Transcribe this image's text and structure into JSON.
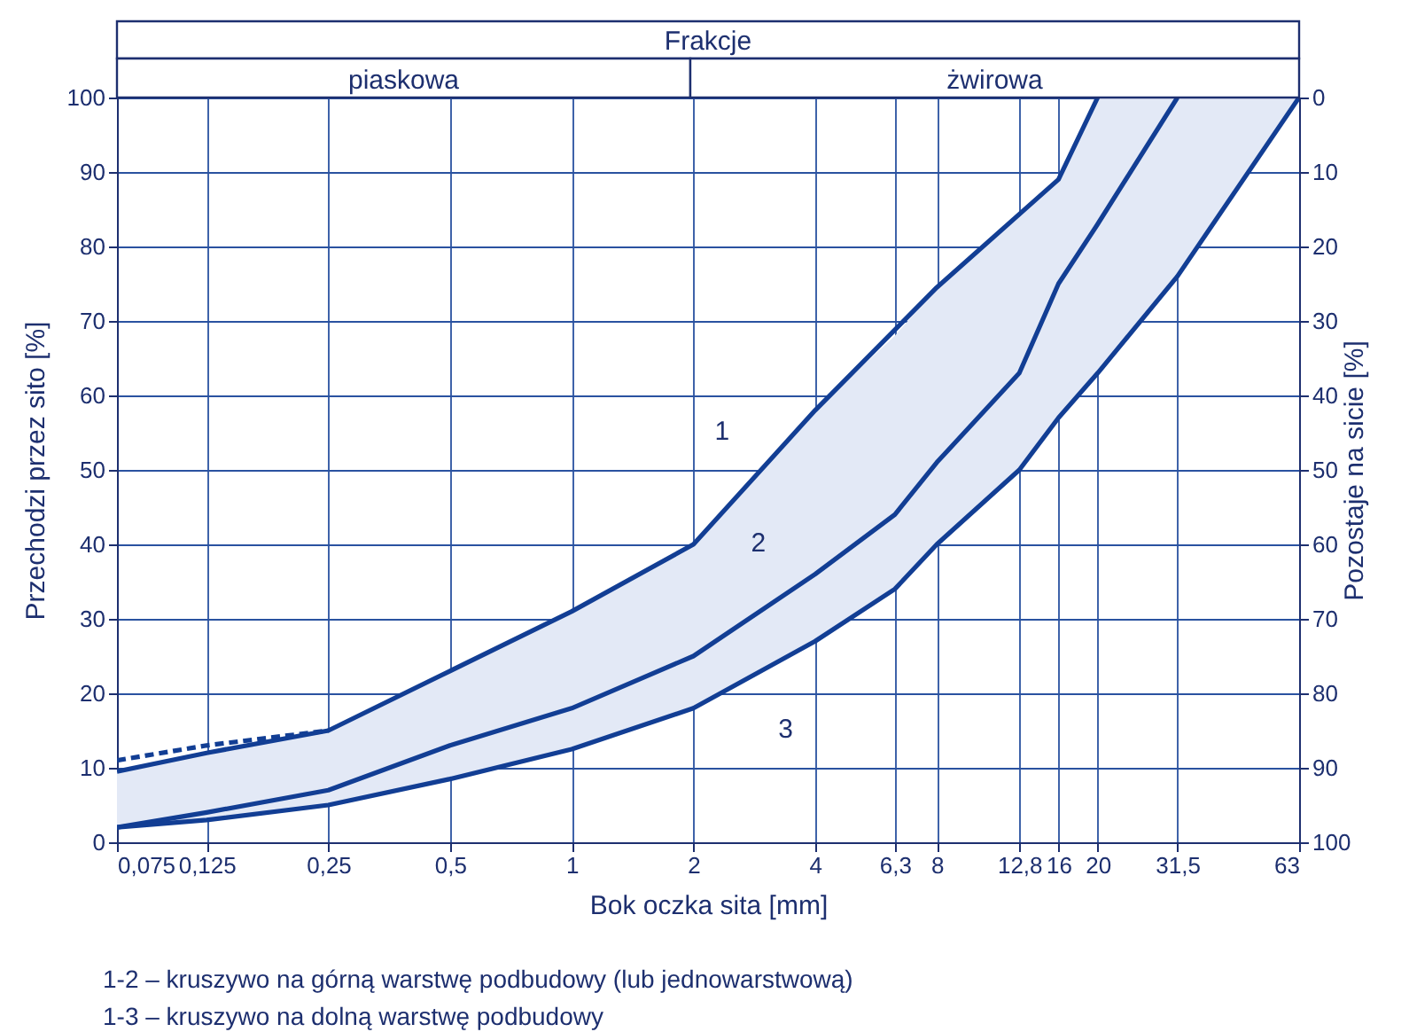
{
  "chart_data": {
    "type": "line",
    "title": "Frakcje",
    "xlabel": "Bok oczka sita [mm]",
    "ylabel": "Przechodzi przez sito [%]",
    "y2label": "Pozostaje na sicie [%]",
    "log": "x",
    "xlim": [
      0.075,
      63
    ],
    "xticks": [
      {
        "value": 0.075,
        "label": "0,075"
      },
      {
        "value": 0.125,
        "label": "0,125"
      },
      {
        "value": 0.25,
        "label": "0,25"
      },
      {
        "value": 0.5,
        "label": "0,5"
      },
      1,
      2,
      4,
      {
        "value": 6.3,
        "label": "6,3"
      },
      8,
      {
        "value": 12.8,
        "label": "12,8"
      },
      16,
      20,
      {
        "value": 31.5,
        "label": "31,5"
      },
      63
    ],
    "ylim": [
      0,
      100
    ],
    "yticks": [
      0,
      10,
      20,
      30,
      40,
      50,
      60,
      70,
      80,
      90,
      100
    ],
    "y2lim": [
      100,
      0
    ],
    "y2ticks": [
      0,
      10,
      20,
      30,
      40,
      50,
      60,
      70,
      80,
      90,
      100
    ],
    "grid": true,
    "series": [
      {
        "color": "#123e94",
        "x": [
          0.075,
          0.125,
          0.25,
          0.5,
          1,
          2,
          4,
          8,
          16,
          20
        ],
        "values": [
          9.5,
          12,
          15,
          23,
          31,
          40,
          58,
          74.5,
          89,
          100
        ]
      },
      {
        "color": "#123e94",
        "x": [
          0.075,
          0.125,
          0.25,
          0.5,
          1,
          2,
          4,
          6.3,
          8,
          12.8,
          16,
          20,
          31.5
        ],
        "values": [
          2,
          4,
          7,
          13,
          18,
          25,
          36,
          44,
          51,
          63,
          75,
          83,
          100
        ]
      },
      {
        "color": "#123e94",
        "x": [
          0.075,
          0.125,
          0.25,
          0.5,
          1,
          2,
          4,
          6.3,
          8,
          12.8,
          16,
          20,
          31.5,
          63
        ],
        "values": [
          2,
          3,
          5,
          8.5,
          12.5,
          18,
          27,
          34,
          40,
          50,
          57,
          63,
          76,
          100
        ],
        "lower": [
          2,
          3,
          5,
          8.5,
          12.5,
          18,
          27,
          34,
          40,
          50,
          57,
          63,
          76,
          100
        ],
        "upper": [
          9.5,
          12,
          15,
          23,
          31,
          40,
          58,
          68,
          74.5,
          84,
          89,
          100,
          100,
          100
        ]
      },
      {
        "color": "#123e94",
        "line_style": "dashed",
        "x": [
          0.075,
          0.125,
          0.25
        ],
        "values": [
          11,
          13,
          15
        ]
      }
    ],
    "annotations": [
      "piaskowa",
      "żwirowa",
      {
        "text": "1",
        "x": 3,
        "y": 50
      },
      {
        "text": "2",
        "x": 4,
        "y": 36
      },
      {
        "text": "3",
        "x": 2.5,
        "y": 20
      },
      "1-2 – kruszywo na górną warstwę podbudowy (lub jednowarstwową)",
      "1-3 – kruszywo na dolną warstwę podbudowy"
    ]
  }
}
